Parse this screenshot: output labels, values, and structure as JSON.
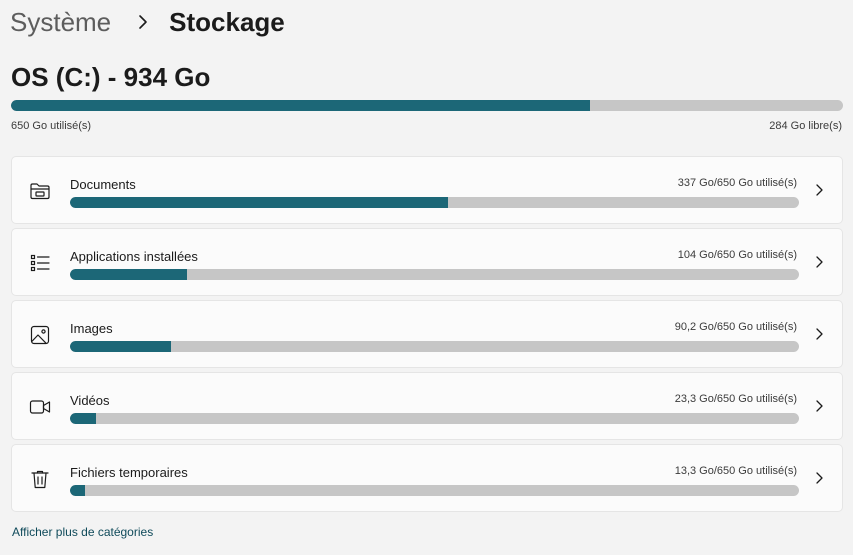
{
  "breadcrumb": {
    "parent": "Système",
    "current": "Stockage"
  },
  "drive": {
    "title": "OS (C:) - 934 Go",
    "used_label": "650 Go utilisé(s)",
    "free_label": "284 Go libre(s)",
    "used_fraction": 0.696
  },
  "categories": [
    {
      "label": "Documents",
      "usage": "337 Go/650 Go utilisé(s)",
      "fraction": 0.518,
      "icon": "folder-icon"
    },
    {
      "label": "Applications installées",
      "usage": "104 Go/650 Go utilisé(s)",
      "fraction": 0.16,
      "icon": "app-list-icon"
    },
    {
      "label": "Images",
      "usage": "90,2 Go/650 Go utilisé(s)",
      "fraction": 0.139,
      "icon": "image-icon"
    },
    {
      "label": "Vidéos",
      "usage": "23,3 Go/650 Go utilisé(s)",
      "fraction": 0.036,
      "icon": "video-camera-icon"
    },
    {
      "label": "Fichiers temporaires",
      "usage": "13,3 Go/650 Go utilisé(s)",
      "fraction": 0.02,
      "icon": "trash-icon"
    }
  ],
  "more_link": "Afficher plus de catégories",
  "colors": {
    "accent": "#1c6777",
    "track": "#c6c6c6",
    "background": "#f3f3f3",
    "card": "#fbfbfb"
  }
}
